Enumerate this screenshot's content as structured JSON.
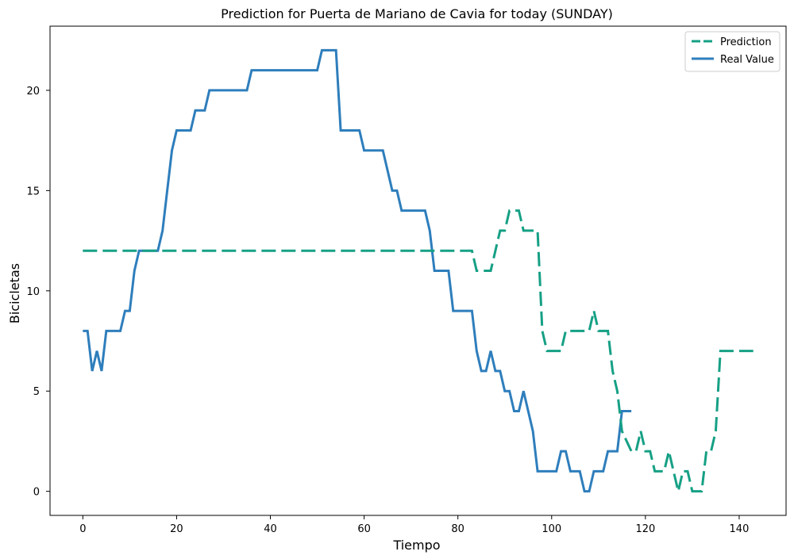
{
  "chart_data": {
    "type": "line",
    "title": "Prediction for Puerta de Mariano de Cavia for today (SUNDAY)",
    "xlabel": "Tiempo",
    "ylabel": "Bicicletas",
    "xlim": [
      -7,
      150
    ],
    "ylim": [
      -1.2,
      23.2
    ],
    "xticks": [
      0,
      20,
      40,
      60,
      80,
      100,
      120,
      140
    ],
    "yticks": [
      0,
      5,
      10,
      15,
      20
    ],
    "grid": false,
    "legend_position": "top-right",
    "series": [
      {
        "name": "Prediction",
        "style": "dashed",
        "color": "#16a085",
        "points": [
          [
            0,
            12
          ],
          [
            83,
            12
          ],
          [
            84,
            11
          ],
          [
            87,
            11
          ],
          [
            89,
            13
          ],
          [
            90,
            13
          ],
          [
            91,
            14
          ],
          [
            93,
            14
          ],
          [
            94,
            13
          ],
          [
            97,
            13
          ],
          [
            98,
            8
          ],
          [
            99,
            7
          ],
          [
            102,
            7
          ],
          [
            103,
            8
          ],
          [
            106,
            8
          ],
          [
            108,
            8
          ],
          [
            109,
            9
          ],
          [
            110,
            8
          ],
          [
            112,
            8
          ],
          [
            113,
            6
          ],
          [
            114,
            5
          ],
          [
            115,
            3
          ],
          [
            117,
            2
          ],
          [
            118,
            2
          ],
          [
            119,
            3
          ],
          [
            120,
            2
          ],
          [
            121,
            2
          ],
          [
            122,
            1
          ],
          [
            124,
            1
          ],
          [
            125,
            2
          ],
          [
            126,
            1
          ],
          [
            127,
            0
          ],
          [
            128,
            1
          ],
          [
            129,
            1
          ],
          [
            130,
            0
          ],
          [
            132,
            0
          ],
          [
            133,
            2
          ],
          [
            134,
            2
          ],
          [
            135,
            3
          ],
          [
            136,
            7
          ],
          [
            143,
            7
          ]
        ]
      },
      {
        "name": "Real Value",
        "style": "solid",
        "color": "#2e7ebc",
        "points": [
          [
            0,
            8
          ],
          [
            1,
            8
          ],
          [
            2,
            6
          ],
          [
            3,
            7
          ],
          [
            4,
            6
          ],
          [
            5,
            8
          ],
          [
            8,
            8
          ],
          [
            9,
            9
          ],
          [
            10,
            9
          ],
          [
            11,
            11
          ],
          [
            12,
            12
          ],
          [
            16,
            12
          ],
          [
            17,
            13
          ],
          [
            18,
            15
          ],
          [
            19,
            17
          ],
          [
            20,
            18
          ],
          [
            23,
            18
          ],
          [
            24,
            19
          ],
          [
            26,
            19
          ],
          [
            27,
            20
          ],
          [
            35,
            20
          ],
          [
            36,
            21
          ],
          [
            50,
            21
          ],
          [
            51,
            22
          ],
          [
            54,
            22
          ],
          [
            55,
            18
          ],
          [
            59,
            18
          ],
          [
            60,
            17
          ],
          [
            64,
            17
          ],
          [
            66,
            15
          ],
          [
            67,
            15
          ],
          [
            68,
            14
          ],
          [
            73,
            14
          ],
          [
            74,
            13
          ],
          [
            75,
            11
          ],
          [
            78,
            11
          ],
          [
            79,
            9
          ],
          [
            83,
            9
          ],
          [
            84,
            7
          ],
          [
            85,
            6
          ],
          [
            86,
            6
          ],
          [
            87,
            7
          ],
          [
            88,
            6
          ],
          [
            89,
            6
          ],
          [
            90,
            5
          ],
          [
            91,
            5
          ],
          [
            92,
            4
          ],
          [
            93,
            4
          ],
          [
            94,
            5
          ],
          [
            96,
            3
          ],
          [
            97,
            1
          ],
          [
            101,
            1
          ],
          [
            102,
            2
          ],
          [
            103,
            2
          ],
          [
            104,
            1
          ],
          [
            106,
            1
          ],
          [
            107,
            0
          ],
          [
            108,
            0
          ],
          [
            109,
            1
          ],
          [
            111,
            1
          ],
          [
            112,
            2
          ],
          [
            114,
            2
          ],
          [
            115,
            4
          ],
          [
            117,
            4
          ]
        ]
      }
    ]
  }
}
